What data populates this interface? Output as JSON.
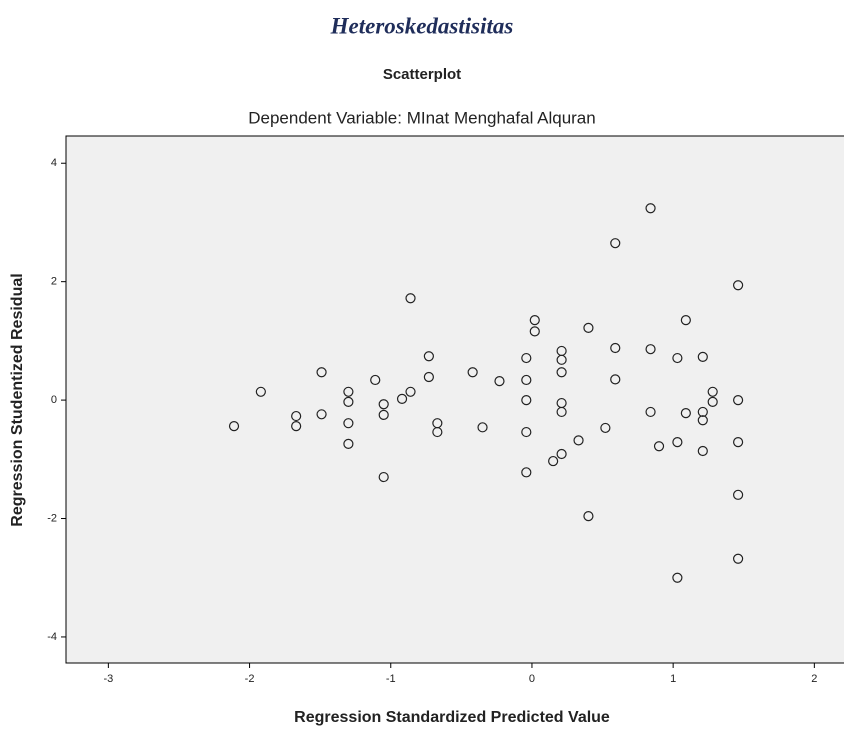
{
  "chart_data": {
    "type": "scatter",
    "heading": "Heteroskedastisitas",
    "title": "Scatterplot",
    "subtitle": "Dependent Variable: MInat Menghafal Alquran",
    "x_label": "Regression Standardized Predicted Value",
    "y_label": "Regression Studentized Residual",
    "color": "#222222",
    "x": [
      -2.11,
      -1.92,
      -1.67,
      -1.67,
      -1.49,
      -1.49,
      -1.3,
      -1.3,
      -1.3,
      -1.3,
      -1.11,
      -1.05,
      -1.05,
      -1.05,
      -0.92,
      -0.86,
      -0.86,
      -0.73,
      -0.73,
      -0.67,
      -0.67,
      -0.42,
      -0.35,
      -0.23,
      -0.04,
      -0.04,
      -0.04,
      -0.04,
      -0.04,
      0.02,
      0.02,
      0.15,
      0.21,
      0.21,
      0.21,
      0.21,
      0.21,
      0.21,
      0.4,
      0.4,
      0.33,
      0.52,
      0.59,
      0.59,
      0.59,
      0.84,
      0.84,
      0.84,
      0.9,
      1.03,
      1.03,
      1.03,
      1.09,
      1.09,
      1.21,
      1.21,
      1.21,
      1.21,
      1.28,
      1.28,
      1.46,
      1.46,
      1.46,
      1.46,
      1.46
    ],
    "values": [
      -0.44,
      0.14,
      -0.27,
      -0.44,
      0.47,
      -0.24,
      0.14,
      -0.03,
      -0.39,
      -0.74,
      0.34,
      -0.07,
      -0.25,
      -1.3,
      0.02,
      0.14,
      1.72,
      0.74,
      0.39,
      -0.39,
      -0.54,
      0.47,
      -0.46,
      0.32,
      0.71,
      0.34,
      0,
      -0.54,
      -1.22,
      1.35,
      1.16,
      -1.03,
      0.83,
      0.68,
      0.47,
      -0.05,
      -0.2,
      -0.91,
      -1.96,
      1.22,
      -0.68,
      -0.47,
      2.65,
      0.88,
      0.35,
      3.24,
      0.86,
      -0.2,
      -0.78,
      0.71,
      -0.71,
      -3.0,
      1.35,
      -0.22,
      0.73,
      -0.2,
      -0.34,
      -0.86,
      0.14,
      -0.03,
      1.94,
      0,
      -0.71,
      -1.6,
      -2.68
    ],
    "xlim": [
      -3.3,
      2.21
    ],
    "ylim": [
      -4.44,
      4.46
    ],
    "xticks": [
      -3,
      -2,
      -1,
      0,
      1,
      2
    ],
    "yticks": [
      -4,
      -2,
      0,
      2,
      4
    ],
    "grid": false
  }
}
